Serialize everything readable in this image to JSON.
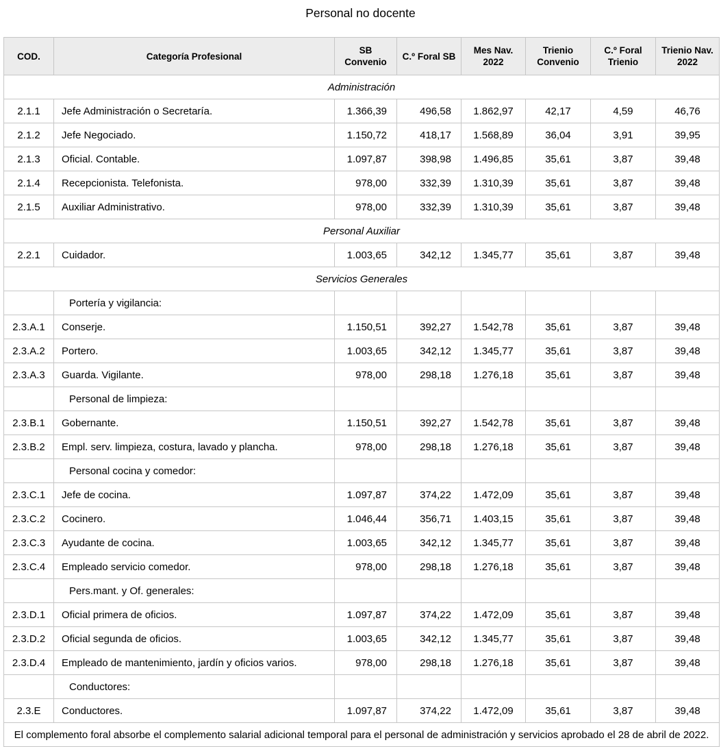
{
  "title": "Personal no docente",
  "columns": [
    "COD.",
    "Categoría Profesional",
    "SB\nConvenio",
    "C.º Foral SB",
    "Mes Nav.\n2022",
    "Trienio\nConvenio",
    "C.º Foral\nTrienio",
    "Trienio Nav.\n2022"
  ],
  "rows": [
    {
      "type": "section",
      "label": "Administración"
    },
    {
      "type": "data",
      "cod": "2.1.1",
      "categoria": "Jefe Administración o Secretaría.",
      "sb_convenio": "1.366,39",
      "c_foral_sb": "496,58",
      "mes_nav": "1.862,97",
      "trienio_convenio": "42,17",
      "c_foral_trienio": "4,59",
      "trienio_nav": "46,76"
    },
    {
      "type": "data",
      "cod": "2.1.2",
      "categoria": "Jefe Negociado.",
      "sb_convenio": "1.150,72",
      "c_foral_sb": "418,17",
      "mes_nav": "1.568,89",
      "trienio_convenio": "36,04",
      "c_foral_trienio": "3,91",
      "trienio_nav": "39,95"
    },
    {
      "type": "data",
      "cod": "2.1.3",
      "categoria": "Oficial. Contable.",
      "sb_convenio": "1.097,87",
      "c_foral_sb": "398,98",
      "mes_nav": "1.496,85",
      "trienio_convenio": "35,61",
      "c_foral_trienio": "3,87",
      "trienio_nav": "39,48"
    },
    {
      "type": "data",
      "cod": "2.1.4",
      "categoria": "Recepcionista. Telefonista.",
      "sb_convenio": "978,00",
      "c_foral_sb": "332,39",
      "mes_nav": "1.310,39",
      "trienio_convenio": "35,61",
      "c_foral_trienio": "3,87",
      "trienio_nav": "39,48"
    },
    {
      "type": "data",
      "cod": "2.1.5",
      "categoria": "Auxiliar Administrativo.",
      "sb_convenio": "978,00",
      "c_foral_sb": "332,39",
      "mes_nav": "1.310,39",
      "trienio_convenio": "35,61",
      "c_foral_trienio": "3,87",
      "trienio_nav": "39,48"
    },
    {
      "type": "section",
      "label": "Personal Auxiliar"
    },
    {
      "type": "data",
      "cod": "2.2.1",
      "categoria": "Cuidador.",
      "sb_convenio": "1.003,65",
      "c_foral_sb": "342,12",
      "mes_nav": "1.345,77",
      "trienio_convenio": "35,61",
      "c_foral_trienio": "3,87",
      "trienio_nav": "39,48"
    },
    {
      "type": "section",
      "label": "Servicios Generales"
    },
    {
      "type": "subgroup",
      "categoria": "Portería y vigilancia:"
    },
    {
      "type": "data",
      "cod": "2.3.A.1",
      "categoria": "Conserje.",
      "sb_convenio": "1.150,51",
      "c_foral_sb": "392,27",
      "mes_nav": "1.542,78",
      "trienio_convenio": "35,61",
      "c_foral_trienio": "3,87",
      "trienio_nav": "39,48"
    },
    {
      "type": "data",
      "cod": "2.3.A.2",
      "categoria": "Portero.",
      "sb_convenio": "1.003,65",
      "c_foral_sb": "342,12",
      "mes_nav": "1.345,77",
      "trienio_convenio": "35,61",
      "c_foral_trienio": "3,87",
      "trienio_nav": "39,48"
    },
    {
      "type": "data",
      "cod": "2.3.A.3",
      "categoria": "Guarda. Vigilante.",
      "sb_convenio": "978,00",
      "c_foral_sb": "298,18",
      "mes_nav": "1.276,18",
      "trienio_convenio": "35,61",
      "c_foral_trienio": "3,87",
      "trienio_nav": "39,48"
    },
    {
      "type": "subgroup",
      "categoria": "Personal de limpieza:"
    },
    {
      "type": "data",
      "cod": "2.3.B.1",
      "categoria": "Gobernante.",
      "sb_convenio": "1.150,51",
      "c_foral_sb": "392,27",
      "mes_nav": "1.542,78",
      "trienio_convenio": "35,61",
      "c_foral_trienio": "3,87",
      "trienio_nav": "39,48"
    },
    {
      "type": "data",
      "cod": "2.3.B.2",
      "categoria": "Empl. serv. limpieza, costura, lavado y plancha.",
      "sb_convenio": "978,00",
      "c_foral_sb": "298,18",
      "mes_nav": "1.276,18",
      "trienio_convenio": "35,61",
      "c_foral_trienio": "3,87",
      "trienio_nav": "39,48"
    },
    {
      "type": "subgroup",
      "categoria": "Personal cocina y comedor:"
    },
    {
      "type": "data",
      "cod": "2.3.C.1",
      "categoria": "Jefe de cocina.",
      "sb_convenio": "1.097,87",
      "c_foral_sb": "374,22",
      "mes_nav": "1.472,09",
      "trienio_convenio": "35,61",
      "c_foral_trienio": "3,87",
      "trienio_nav": "39,48"
    },
    {
      "type": "data",
      "cod": "2.3.C.2",
      "categoria": "Cocinero.",
      "sb_convenio": "1.046,44",
      "c_foral_sb": "356,71",
      "mes_nav": "1.403,15",
      "trienio_convenio": "35,61",
      "c_foral_trienio": "3,87",
      "trienio_nav": "39,48"
    },
    {
      "type": "data",
      "cod": "2.3.C.3",
      "categoria": "Ayudante de cocina.",
      "sb_convenio": "1.003,65",
      "c_foral_sb": "342,12",
      "mes_nav": "1.345,77",
      "trienio_convenio": "35,61",
      "c_foral_trienio": "3,87",
      "trienio_nav": "39,48"
    },
    {
      "type": "data",
      "cod": "2.3.C.4",
      "categoria": "Empleado servicio comedor.",
      "sb_convenio": "978,00",
      "c_foral_sb": "298,18",
      "mes_nav": "1.276,18",
      "trienio_convenio": "35,61",
      "c_foral_trienio": "3,87",
      "trienio_nav": "39,48"
    },
    {
      "type": "subgroup",
      "categoria": "Pers.mant. y Of. generales:"
    },
    {
      "type": "data",
      "cod": "2.3.D.1",
      "categoria": "Oficial primera de oficios.",
      "sb_convenio": "1.097,87",
      "c_foral_sb": "374,22",
      "mes_nav": "1.472,09",
      "trienio_convenio": "35,61",
      "c_foral_trienio": "3,87",
      "trienio_nav": "39,48"
    },
    {
      "type": "data",
      "cod": "2.3.D.2",
      "categoria": "Oficial segunda de oficios.",
      "sb_convenio": "1.003,65",
      "c_foral_sb": "342,12",
      "mes_nav": "1.345,77",
      "trienio_convenio": "35,61",
      "c_foral_trienio": "3,87",
      "trienio_nav": "39,48"
    },
    {
      "type": "data",
      "cod": "2.3.D.4",
      "categoria": "Empleado de mantenimiento, jardín y oficios varios.",
      "sb_convenio": "978,00",
      "c_foral_sb": "298,18",
      "mes_nav": "1.276,18",
      "trienio_convenio": "35,61",
      "c_foral_trienio": "3,87",
      "trienio_nav": "39,48"
    },
    {
      "type": "subgroup",
      "categoria": "Conductores:"
    },
    {
      "type": "data",
      "cod": "2.3.E",
      "categoria": "Conductores.",
      "sb_convenio": "1.097,87",
      "c_foral_sb": "374,22",
      "mes_nav": "1.472,09",
      "trienio_convenio": "35,61",
      "c_foral_trienio": "3,87",
      "trienio_nav": "39,48"
    }
  ],
  "footnote": "El complemento foral absorbe el complemento salarial adicional temporal para el personal de administración y servicios aprobado el 28 de abril de 2022.",
  "colors": {
    "header_bg": "#ececec",
    "border": "#c6c6c6",
    "text": "#000000"
  }
}
